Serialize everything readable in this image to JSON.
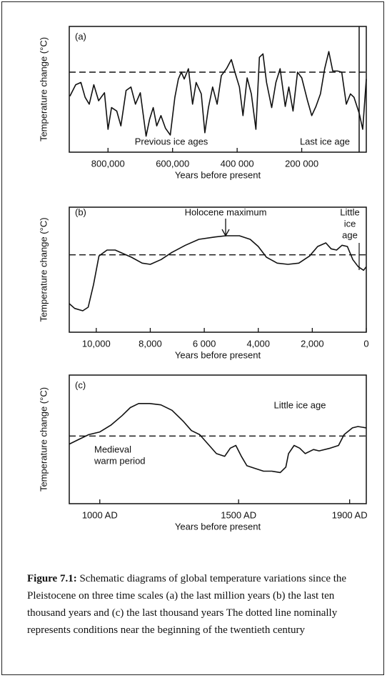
{
  "chart_data": [
    {
      "type": "line",
      "label": "(a)",
      "ylabel": "Temperature change (°C)",
      "xlabel": "Years before present",
      "xlim": [
        920000,
        0
      ],
      "xticks": [
        {
          "value": 800000,
          "label": "800,000"
        },
        {
          "value": 600000,
          "label": "600,000"
        },
        {
          "value": 400000,
          "label": "400 000"
        },
        {
          "value": 200000,
          "label": "200 000"
        }
      ],
      "ylim": [
        -7,
        4
      ],
      "reference_line": 0,
      "color": "#111111",
      "annotations": [
        "Previous ice ages",
        "Last ice age"
      ],
      "x": [
        918000,
        900000,
        884000,
        871000,
        858000,
        844000,
        829000,
        811000,
        800000,
        789000,
        773000,
        760000,
        744000,
        729000,
        715000,
        700000,
        682000,
        671000,
        660000,
        649000,
        636000,
        622000,
        607000,
        593000,
        582000,
        573000,
        564000,
        551000,
        538000,
        527000,
        511000,
        500000,
        489000,
        476000,
        462000,
        449000,
        433000,
        418000,
        407000,
        393000,
        382000,
        369000,
        356000,
        342000,
        331000,
        320000,
        309000,
        293000,
        280000,
        267000,
        251000,
        240000,
        227000,
        213000,
        200000,
        182000,
        169000,
        156000,
        142000,
        129000,
        116000,
        104000,
        89000,
        76000,
        62000,
        49000,
        38000,
        22000,
        11000,
        0
      ],
      "values": [
        -2.1,
        -1.1,
        -0.9,
        -2.2,
        -2.8,
        -1.1,
        -2.5,
        -1.8,
        -5.0,
        -3.1,
        -3.4,
        -4.7,
        -1.6,
        -1.3,
        -2.8,
        -1.8,
        -5.6,
        -4.1,
        -3.1,
        -4.7,
        -3.8,
        -4.9,
        -5.5,
        -2.2,
        -0.6,
        0,
        -0.6,
        0.3,
        -2.8,
        -0.9,
        -1.9,
        -5.3,
        -3.1,
        -1.3,
        -2.8,
        -0.3,
        0.3,
        1.1,
        0,
        -1.3,
        -3.8,
        -0.5,
        -1.9,
        -5.0,
        1.3,
        1.6,
        -0.9,
        -3.1,
        -0.9,
        0.3,
        -3.0,
        -1.3,
        -3.4,
        0,
        -0.5,
        -2.5,
        -3.8,
        -3.0,
        -1.9,
        0.3,
        1.8,
        0.1,
        0.1,
        0,
        -2.8,
        -1.9,
        -2.2,
        -3.6,
        -5.0,
        -0.6
      ]
    },
    {
      "type": "line",
      "label": "(b)",
      "ylabel": "Temperature change (°C)",
      "xlabel": "Years before present",
      "xlim": [
        11000,
        0
      ],
      "xticks": [
        {
          "value": 10000,
          "label": "10,000"
        },
        {
          "value": 8000,
          "label": "8,000"
        },
        {
          "value": 6000,
          "label": "6 000"
        },
        {
          "value": 4000,
          "label": "4,000"
        },
        {
          "value": 2000,
          "label": "2,000"
        },
        0
      ],
      "ylim": [
        -6.5,
        4
      ],
      "reference_line": 0,
      "color": "#111111",
      "annotations": [
        "Holocene maximum",
        [
          "Little",
          "ice",
          "age"
        ]
      ],
      "x": [
        11000,
        10800,
        10500,
        10300,
        10100,
        9900,
        9600,
        9300,
        9000,
        8700,
        8300,
        8000,
        7600,
        7200,
        6700,
        6200,
        5600,
        5200,
        4700,
        4300,
        4000,
        3700,
        3300,
        2900,
        2500,
        2100,
        1800,
        1500,
        1300,
        1100,
        900,
        700,
        500,
        300,
        100,
        0
      ],
      "values": [
        -4.1,
        -4.5,
        -4.7,
        -4.4,
        -2.5,
        -0.1,
        0.4,
        0.4,
        0.1,
        -0.2,
        -0.7,
        -0.8,
        -0.4,
        0.2,
        0.8,
        1.3,
        1.5,
        1.6,
        1.6,
        1.3,
        0.7,
        -0.2,
        -0.7,
        -0.8,
        -0.7,
        -0.1,
        0.7,
        1.0,
        0.5,
        0.4,
        0.8,
        0.7,
        -0.4,
        -1.0,
        -1.3,
        -1.0
      ]
    },
    {
      "type": "line",
      "label": "(c)",
      "ylabel": "Temperature change (°C)",
      "xlabel": "Years before present",
      "xlim": [
        890,
        1960
      ],
      "xticks": [
        {
          "value": 1000,
          "label": "1000 AD"
        },
        {
          "value": 1500,
          "label": "1500 AD"
        },
        {
          "value": 1900,
          "label": "1900 AD"
        }
      ],
      "ylim": [
        -5,
        4.5
      ],
      "reference_line": 0,
      "color": "#111111",
      "annotations": [
        "Little ice age",
        [
          "Medieval",
          "warm period"
        ]
      ],
      "x": [
        890,
        920,
        960,
        1000,
        1040,
        1080,
        1110,
        1140,
        1180,
        1220,
        1260,
        1300,
        1330,
        1360,
        1390,
        1420,
        1450,
        1470,
        1490,
        1510,
        1530,
        1560,
        1590,
        1620,
        1650,
        1670,
        1680,
        1700,
        1720,
        1740,
        1770,
        1790,
        1830,
        1860,
        1880,
        1910,
        1930,
        1960
      ],
      "values": [
        -0.6,
        -0.3,
        0.1,
        0.3,
        0.8,
        1.5,
        2.1,
        2.4,
        2.4,
        2.3,
        1.9,
        1.1,
        0.4,
        0.1,
        -0.6,
        -1.3,
        -1.5,
        -0.9,
        -0.7,
        -1.5,
        -2.2,
        -2.4,
        -2.6,
        -2.6,
        -2.7,
        -2.3,
        -1.3,
        -0.7,
        -0.9,
        -1.3,
        -1.0,
        -1.1,
        -0.9,
        -0.7,
        0.1,
        0.6,
        0.7,
        0.6
      ]
    }
  ],
  "caption": {
    "label": "Figure 7.1:",
    "text": "Schematic diagrams of global temperature variations since the Pleistocene on three time scales (a) the last million years (b) the last ten thousand years and (c) the last thousand years The dotted line nominally represents conditions near the beginning of the twentieth century"
  }
}
